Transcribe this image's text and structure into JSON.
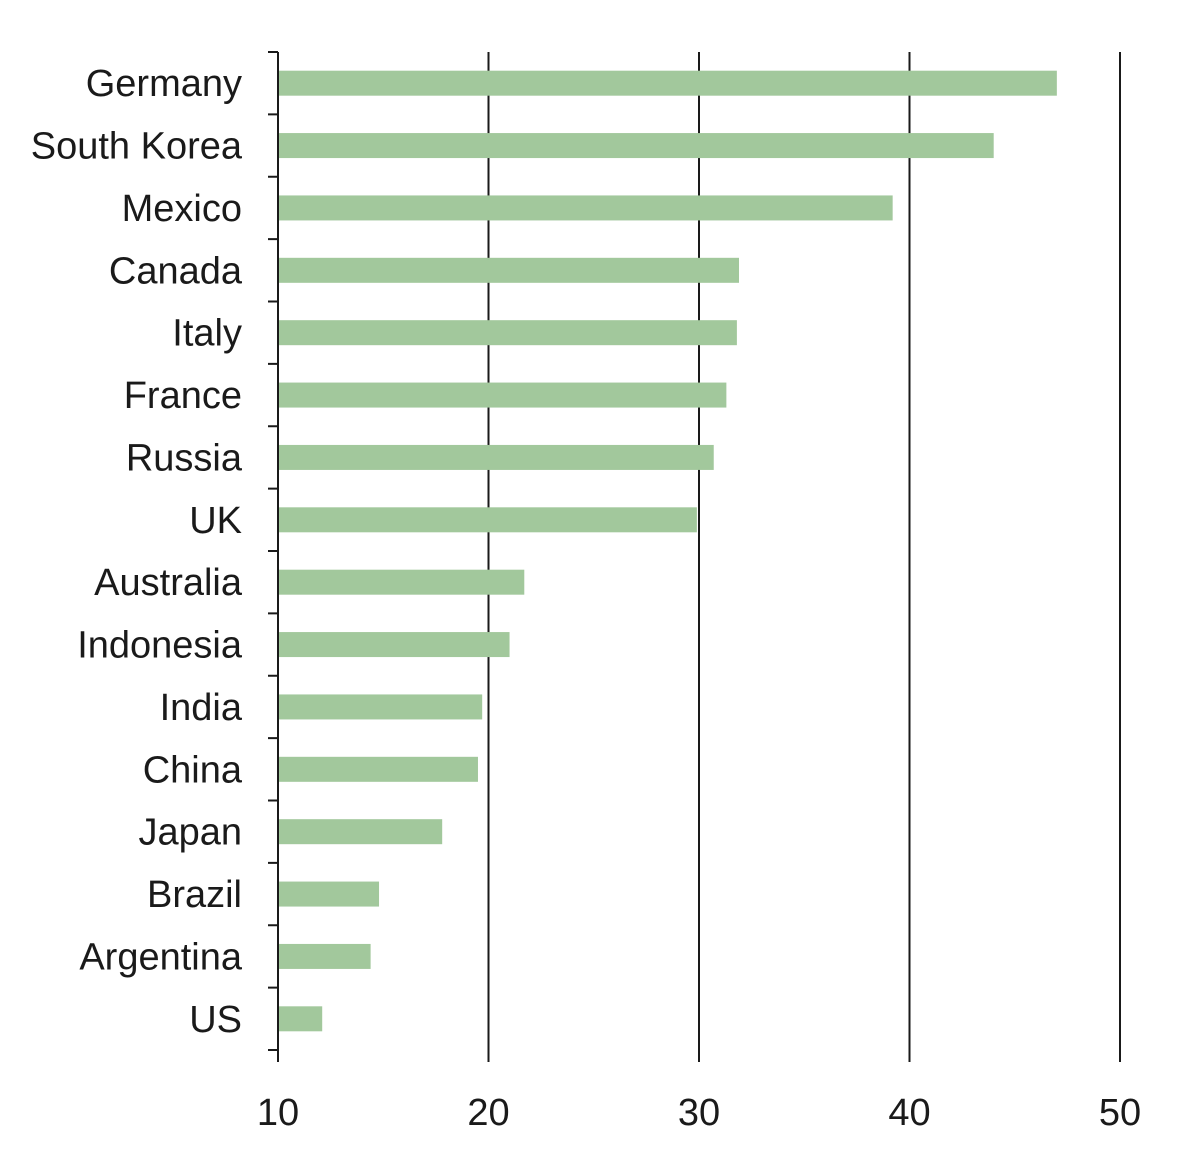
{
  "chart_data": {
    "type": "bar",
    "orientation": "horizontal",
    "categories": [
      "Germany",
      "South Korea",
      "Mexico",
      "Canada",
      "Italy",
      "France",
      "Russia",
      "UK",
      "Australia",
      "Indonesia",
      "India",
      "China",
      "Japan",
      "Brazil",
      "Argentina",
      "US"
    ],
    "values": [
      47.0,
      44.0,
      39.2,
      31.9,
      31.8,
      31.3,
      30.7,
      29.9,
      21.7,
      21.0,
      19.7,
      19.5,
      17.8,
      14.8,
      14.4,
      12.1
    ],
    "title": "",
    "xlabel": "",
    "ylabel": "",
    "xlim": [
      10,
      50
    ],
    "x_ticks": [
      "10",
      "20",
      "30",
      "40",
      "50"
    ],
    "grid": "vertical",
    "bar_color": "#a2c89c",
    "axis_color": "#1a1a1a"
  }
}
